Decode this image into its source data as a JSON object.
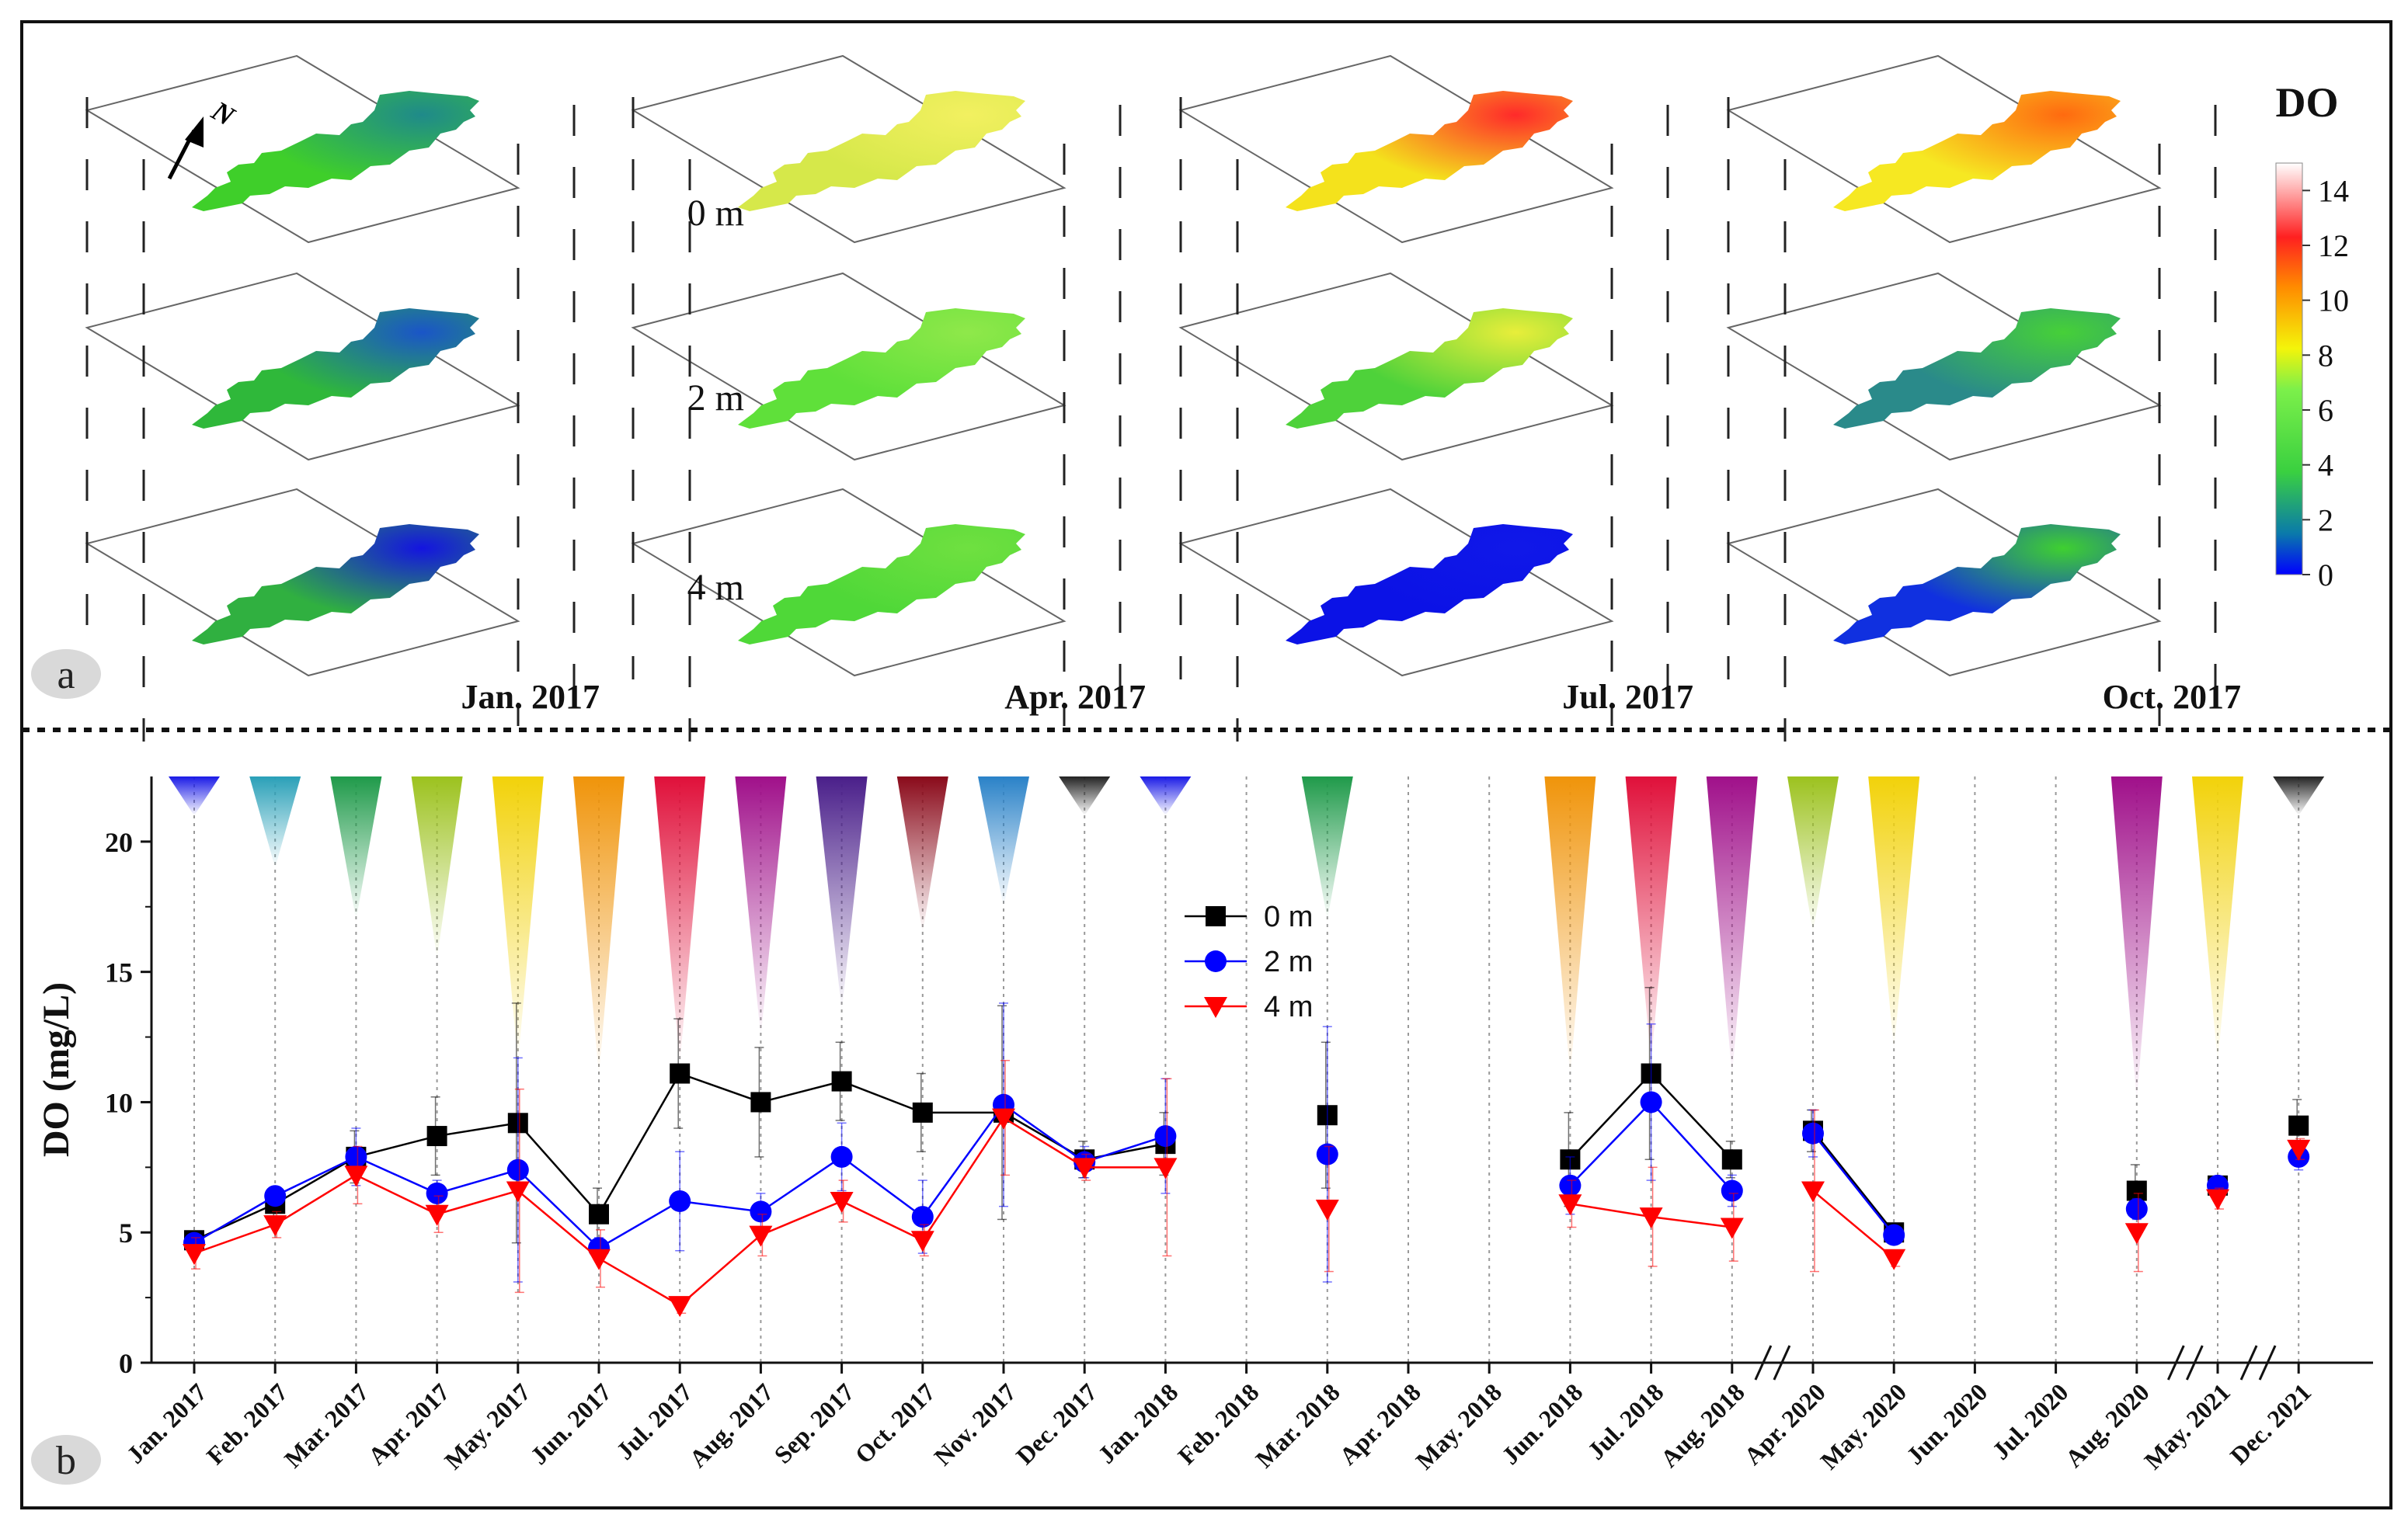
{
  "panel_a": {
    "label": "a",
    "north_label": "N",
    "depth_labels": [
      "0 m",
      "2 m",
      "4 m"
    ],
    "months": [
      "Jan. 2017",
      "Apr. 2017",
      "Jul. 2017",
      "Oct. 2017"
    ],
    "colorbar": {
      "title": "DO",
      "ticks": [
        "14",
        "12",
        "10",
        "8",
        "6",
        "4",
        "2",
        "0"
      ],
      "range": [
        0,
        15
      ]
    },
    "maps": [
      {
        "month": "Jan. 2017",
        "fills": [
          "#3fcf2a",
          "#2fb83a",
          "#30b040"
        ],
        "hot": [
          "#1f8a8a",
          "#1a55c8",
          "#1414e0"
        ]
      },
      {
        "month": "Apr. 2017",
        "fills": [
          "#d6e84a",
          "#5fe03a",
          "#4fd838"
        ],
        "hot": [
          "#f2f060",
          "#8fe84a",
          "#6fe040"
        ]
      },
      {
        "month": "Jul. 2017",
        "fills": [
          "#f4e21c",
          "#4ed23a",
          "#0b12e6"
        ],
        "hot": [
          "#ff2a2a",
          "#e8ee3a",
          "#1018e8"
        ]
      },
      {
        "month": "Oct. 2017",
        "fills": [
          "#f6e822",
          "#2a8a8a",
          "#1030e0"
        ],
        "hot": [
          "#ff6a10",
          "#46d038",
          "#3fd030"
        ]
      }
    ]
  },
  "panel_b": {
    "label": "b",
    "chart_data": {
      "type": "line",
      "ylabel": "DO (mg/L)",
      "ylim": [
        0,
        22.5
      ],
      "yticks": [
        "0",
        "5",
        "10",
        "15",
        "20"
      ],
      "categories": [
        "Jan. 2017",
        "Feb. 2017",
        "Mar. 2017",
        "Apr. 2017",
        "May. 2017",
        "Jun. 2017",
        "Jul. 2017",
        "Aug. 2017",
        "Sep. 2017",
        "Oct. 2017",
        "Nov. 2017",
        "Dec. 2017",
        "Jan. 2018",
        "Feb. 2018",
        "Mar. 2018",
        "Apr. 2018",
        "May. 2018",
        "Jun. 2018",
        "Jul. 2018",
        "Aug. 2018",
        "Apr. 2020",
        "May. 2020",
        "Jun. 2020",
        "Jul. 2020",
        "Aug. 2020",
        "May. 2021",
        "Dec. 2021"
      ],
      "segments": [
        [
          0,
          12
        ],
        [
          14,
          14
        ],
        [
          17,
          19
        ],
        [
          20,
          21
        ],
        [
          24,
          24
        ],
        [
          25,
          25
        ],
        [
          26,
          26
        ]
      ],
      "axis_breaks": [
        19.5,
        24.6,
        25.5
      ],
      "series": [
        {
          "name": "0 m",
          "color": "#000000",
          "marker": "square",
          "values": [
            4.7,
            6.1,
            7.9,
            8.7,
            9.2,
            5.7,
            11.1,
            10.0,
            10.8,
            9.6,
            9.6,
            7.8,
            8.4,
            null,
            9.5,
            null,
            null,
            7.8,
            11.1,
            7.8,
            8.9,
            5.0,
            null,
            null,
            6.6,
            6.8,
            9.1
          ],
          "errors": [
            0.3,
            0.5,
            1.0,
            1.5,
            4.6,
            1.0,
            2.1,
            2.1,
            1.5,
            1.5,
            4.1,
            0.7,
            1.2,
            null,
            2.8,
            null,
            null,
            1.8,
            3.3,
            0.7,
            0.8,
            0.3,
            null,
            null,
            1.0,
            0.3,
            1.0
          ]
        },
        {
          "name": "2 m",
          "color": "#0000ff",
          "marker": "circle",
          "values": [
            4.6,
            6.4,
            7.9,
            6.5,
            7.4,
            4.4,
            6.2,
            5.8,
            7.9,
            5.6,
            9.9,
            7.7,
            8.7,
            null,
            8.0,
            null,
            null,
            6.8,
            10.0,
            6.6,
            8.8,
            4.9,
            null,
            null,
            5.9,
            6.8,
            7.9
          ],
          "errors": [
            0.3,
            0.3,
            1.1,
            0.5,
            4.3,
            0.4,
            1.9,
            0.7,
            1.3,
            1.4,
            3.9,
            0.6,
            2.2,
            null,
            4.9,
            null,
            null,
            1.1,
            3.0,
            0.6,
            0.9,
            0.2,
            null,
            null,
            0.4,
            0.2,
            0.5
          ]
        },
        {
          "name": "4 m",
          "color": "#ff0000",
          "marker": "triangle-down",
          "values": [
            4.2,
            5.3,
            7.2,
            5.7,
            6.6,
            4.0,
            2.2,
            4.9,
            6.2,
            4.7,
            9.4,
            7.5,
            7.5,
            null,
            5.9,
            null,
            null,
            6.1,
            5.6,
            5.2,
            6.6,
            4.0,
            null,
            null,
            5.0,
            6.3,
            8.2
          ],
          "errors": [
            0.6,
            0.5,
            1.1,
            0.7,
            3.9,
            1.1,
            0.3,
            0.8,
            0.8,
            0.6,
            2.2,
            0.5,
            3.4,
            null,
            2.4,
            null,
            null,
            0.9,
            1.9,
            1.3,
            3.1,
            0.3,
            null,
            null,
            1.5,
            0.4,
            0.4
          ]
        }
      ],
      "cone_colors": [
        "#1a1ae6",
        "#2aa0b8",
        "#1f9a4a",
        "#9cc21e",
        "#f2d20a",
        "#f0940a",
        "#e0103a",
        "#a0108a",
        "#4a1f8a",
        "#8a0a1a",
        "#2a82c8",
        "#222222",
        "#1a1ae6",
        null,
        "#1f9a4a",
        null,
        null,
        "#f0940a",
        "#e0103a",
        "#a0108a",
        "#9cc21e",
        "#f2d20a",
        null,
        null,
        "#a0108a",
        "#f2d20a",
        "#222222"
      ],
      "cone_top_values": [
        21.0,
        19.0,
        17.0,
        15.5,
        11.5,
        11.0,
        11.5,
        12.5,
        13.5,
        16.5,
        17.5,
        21.0,
        21.0,
        null,
        17.0,
        null,
        null,
        11.0,
        11.5,
        11.0,
        16.5,
        12.0,
        null,
        null,
        10.0,
        11.5,
        21.0
      ],
      "legend": {
        "entries": [
          "0 m",
          "2 m",
          "4 m"
        ],
        "placement": "upper-middle"
      }
    }
  }
}
